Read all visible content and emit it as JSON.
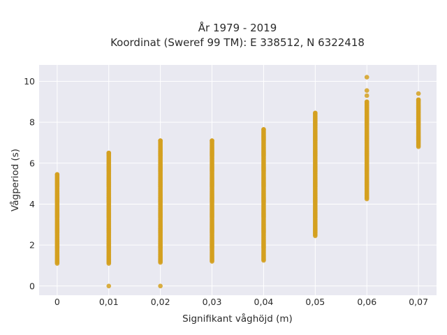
{
  "chart_data": {
    "type": "scatter",
    "title_line1": "År 1979 - 2019",
    "title_line2": "Koordinat (Sweref 99 TM): E 338512, N 6322418",
    "xlabel": "Signifikant våghöjd (m)",
    "ylabel": "Vågperiod (s)",
    "x_ticks": [
      0,
      0.01,
      0.02,
      0.03,
      0.04,
      0.05,
      0.06,
      0.07
    ],
    "x_tick_labels": [
      "0",
      "0,01",
      "0,02",
      "0,03",
      "0,04",
      "0,05",
      "0,06",
      "0,07"
    ],
    "y_ticks": [
      0,
      2,
      4,
      6,
      8,
      10
    ],
    "y_tick_labels": [
      "0",
      "2",
      "4",
      "6",
      "8",
      "10"
    ],
    "xlim": [
      -0.0035,
      0.0735
    ],
    "ylim": [
      -0.45,
      10.8
    ],
    "grid": true,
    "colors": {
      "plot_bg": "#e9e9f1",
      "grid": "#ffffff",
      "marker": "#d4a020"
    },
    "series": [
      {
        "columns": [
          {
            "x": 0,
            "y_min": 1.1,
            "y_max": 5.45,
            "extra": []
          },
          {
            "x": 0.01,
            "y_min": 1.1,
            "y_max": 6.5,
            "extra": [
              0
            ]
          },
          {
            "x": 0.02,
            "y_min": 1.15,
            "y_max": 7.1,
            "extra": [
              0
            ]
          },
          {
            "x": 0.03,
            "y_min": 1.2,
            "y_max": 7.1,
            "extra": []
          },
          {
            "x": 0.04,
            "y_min": 1.25,
            "y_max": 7.65,
            "extra": []
          },
          {
            "x": 0.05,
            "y_min": 2.45,
            "y_max": 8.45,
            "extra": []
          },
          {
            "x": 0.06,
            "y_min": 4.25,
            "y_max": 9.0,
            "extra": [
              9.3,
              9.55,
              10.2
            ]
          },
          {
            "x": 0.07,
            "y_min": 6.8,
            "y_max": 9.1,
            "extra": [
              9.4
            ]
          }
        ]
      }
    ]
  }
}
